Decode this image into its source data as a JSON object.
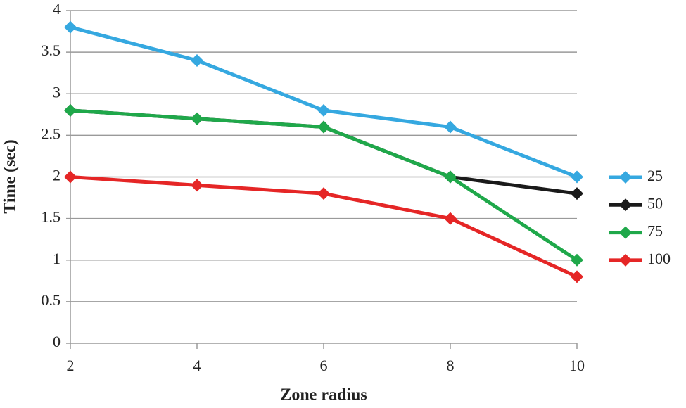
{
  "chart_data": {
    "type": "line",
    "x_label": "Zone radius",
    "y_label": "Time (sec)",
    "x": [
      2,
      4,
      6,
      8,
      10
    ],
    "series": [
      {
        "name": "25",
        "color": "#35a8e0",
        "values": [
          3.8,
          3.4,
          2.8,
          2.6,
          2.0
        ]
      },
      {
        "name": "50",
        "color": "#1a1a1a",
        "values": [
          2.8,
          2.7,
          2.6,
          2.0,
          1.8
        ]
      },
      {
        "name": "75",
        "color": "#1fa84a",
        "values": [
          2.8,
          2.7,
          2.6,
          2.0,
          1.0
        ]
      },
      {
        "name": "100",
        "color": "#e52626",
        "values": [
          2.0,
          1.9,
          1.8,
          1.5,
          0.8
        ]
      }
    ],
    "xlim": [
      2,
      10
    ],
    "xticks": [
      2,
      4,
      6,
      8,
      10
    ],
    "ylim": [
      0,
      4
    ],
    "yticks": [
      0,
      0.5,
      1,
      1.5,
      2,
      2.5,
      3,
      3.5,
      4
    ],
    "grid": true,
    "legend": "right"
  }
}
